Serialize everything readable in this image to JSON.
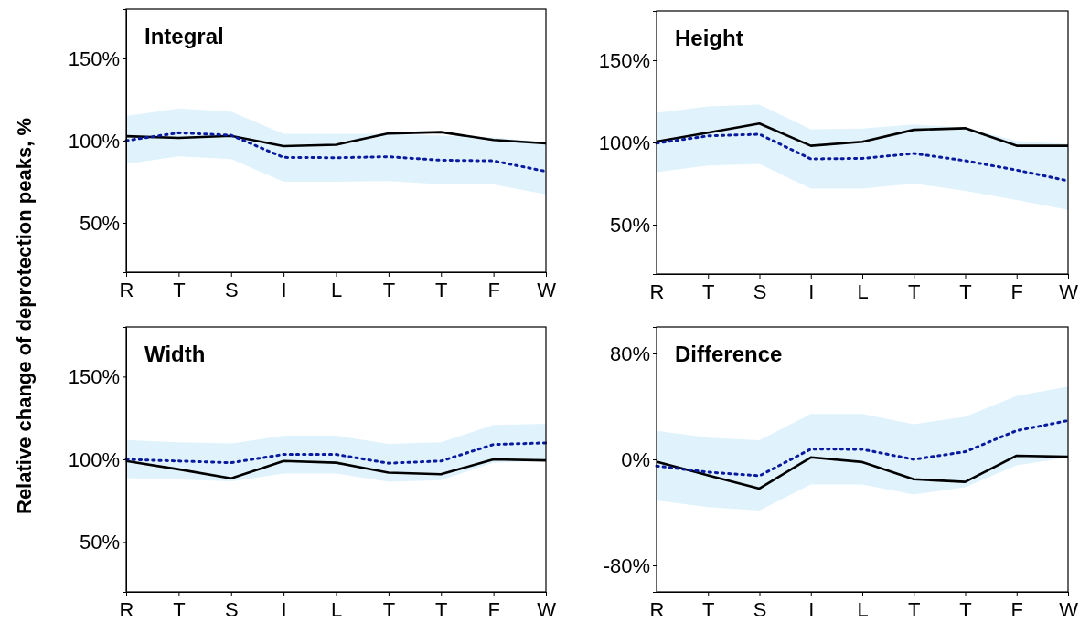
{
  "chart_data": [
    {
      "type": "line",
      "title": "Integral",
      "ylabel": "Relative change of deprotection peaks, %",
      "categories": [
        "R",
        "T",
        "S",
        "I",
        "L",
        "T",
        "T",
        "F",
        "W"
      ],
      "ylim": [
        20,
        180
      ],
      "yticks": [
        {
          "value": 50,
          "label": "50%"
        },
        {
          "value": 100,
          "label": "100%"
        },
        {
          "value": 150,
          "label": "150%"
        }
      ],
      "grid": false,
      "series": [
        {
          "color": "#000000",
          "line_style": "solid",
          "values": [
            102.7,
            101.7,
            102.9,
            96.7,
            97.5,
            104.4,
            105.2,
            100.4,
            98.3
          ]
        },
        {
          "color": "#0a1a9e",
          "line_style": "dotted",
          "values": [
            100,
            104.8,
            103.3,
            89.8,
            89.6,
            90.2,
            88.1,
            87.7,
            81.3
          ],
          "lower": [
            85.8,
            90.4,
            88.8,
            75,
            75,
            75.4,
            73.5,
            73.3,
            67.3
          ],
          "upper": [
            115,
            119.6,
            117.7,
            104.2,
            104.2,
            104.2,
            103,
            102,
            99
          ]
        }
      ]
    },
    {
      "type": "line",
      "title": "Height",
      "categories": [
        "R",
        "T",
        "S",
        "I",
        "L",
        "T",
        "T",
        "F",
        "W"
      ],
      "ylim": [
        20,
        180
      ],
      "yticks": [
        {
          "value": 50,
          "label": "50%"
        },
        {
          "value": 100,
          "label": "100%"
        },
        {
          "value": 150,
          "label": "150%"
        }
      ],
      "grid": false,
      "series": [
        {
          "color": "#000000",
          "line_style": "solid",
          "values": [
            100.6,
            106,
            111.5,
            98,
            100.4,
            107.7,
            108.7,
            98,
            98
          ]
        },
        {
          "color": "#0a1a9e",
          "line_style": "dotted",
          "values": [
            99.6,
            104,
            105,
            90,
            90.3,
            93.3,
            88.9,
            83.2,
            76.7
          ],
          "lower": [
            82,
            86,
            87,
            72,
            72,
            75,
            70.6,
            65,
            59
          ],
          "upper": [
            118,
            122,
            123,
            108,
            108.5,
            111,
            109,
            101,
            99
          ]
        }
      ]
    },
    {
      "type": "line",
      "title": "Width",
      "categories": [
        "R",
        "T",
        "S",
        "I",
        "L",
        "T",
        "T",
        "F",
        "W"
      ],
      "ylim": [
        20,
        180
      ],
      "yticks": [
        {
          "value": 50,
          "label": "50%"
        },
        {
          "value": 100,
          "label": "100%"
        },
        {
          "value": 150,
          "label": "150%"
        }
      ],
      "grid": false,
      "series": [
        {
          "color": "#000000",
          "line_style": "solid",
          "values": [
            99,
            94,
            88.5,
            99,
            98,
            92,
            91,
            100,
            99.4
          ]
        },
        {
          "color": "#0a1a9e",
          "line_style": "dotted",
          "values": [
            100,
            99,
            98,
            103,
            103,
            97.7,
            99,
            109,
            110
          ],
          "lower": [
            88.7,
            87.9,
            86.7,
            91.5,
            91.5,
            86.5,
            87.5,
            98,
            99
          ],
          "upper": [
            111.7,
            110.4,
            109.6,
            114.4,
            114.4,
            109.4,
            110.4,
            120.8,
            121.5
          ]
        }
      ]
    },
    {
      "type": "line",
      "title": "Difference",
      "categories": [
        "R",
        "T",
        "S",
        "I",
        "L",
        "T",
        "T",
        "F",
        "W"
      ],
      "ylim": [
        -100,
        100
      ],
      "yticks": [
        {
          "value": -80,
          "label": "-80%"
        },
        {
          "value": 0,
          "label": "0%"
        },
        {
          "value": 80,
          "label": "80%"
        }
      ],
      "grid": false,
      "series": [
        {
          "color": "#000000",
          "line_style": "solid",
          "values": [
            -1.8,
            -12,
            -22,
            1.5,
            -2,
            -15,
            -17,
            2.8,
            2
          ]
        },
        {
          "color": "#0a1a9e",
          "line_style": "dotted",
          "values": [
            -5,
            -9.6,
            -12.4,
            7.8,
            7.6,
            0,
            5.8,
            21.7,
            29.3
          ],
          "lower": [
            -31,
            -36,
            -38.6,
            -19,
            -19,
            -26.5,
            -21,
            -4.5,
            1.3
          ],
          "upper": [
            21.5,
            16.4,
            14.4,
            34.3,
            34.3,
            26.5,
            32.3,
            48,
            55
          ]
        }
      ]
    }
  ]
}
